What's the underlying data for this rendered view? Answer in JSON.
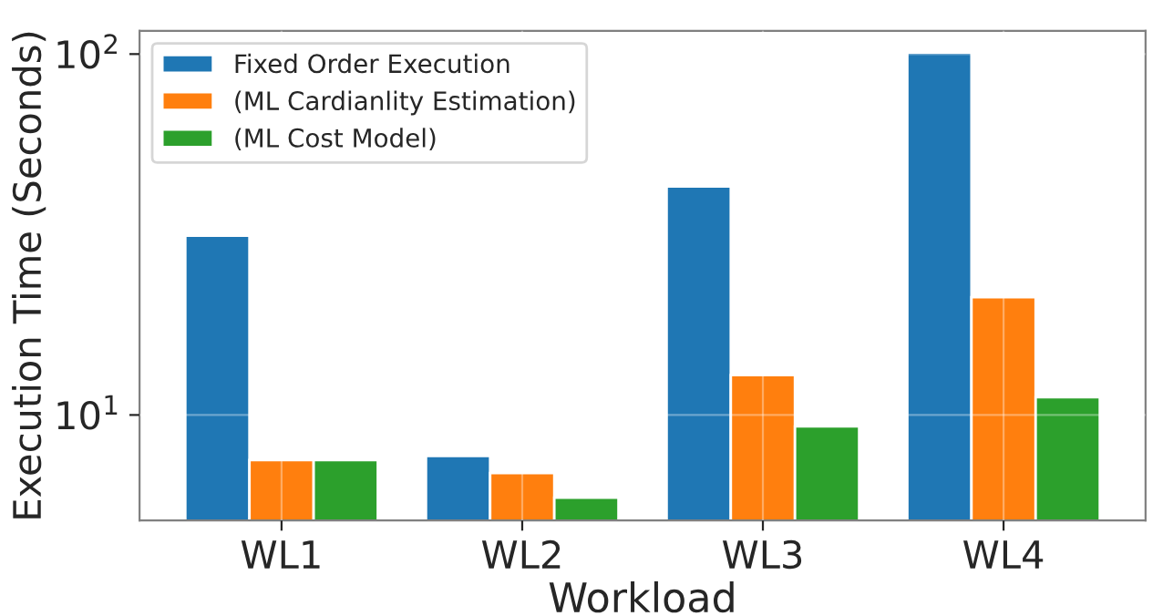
{
  "chart_data": {
    "type": "bar",
    "xlabel": "Workload",
    "ylabel": "Execution Time (Seconds)",
    "categories": [
      "WL1",
      "WL2",
      "WL3",
      "WL4"
    ],
    "series": [
      {
        "name": "Fixed Order Execution",
        "color": "#1f77b4",
        "values": [
          31.4,
          7.7,
          43,
          101
        ]
      },
      {
        "name": "(ML Cardianlity Estimation)",
        "color": "#ff7f0e",
        "values": [
          7.5,
          6.9,
          12.9,
          21.2
        ]
      },
      {
        "name": "(ML Cost Model)",
        "color": "#2ca02c",
        "values": [
          7.5,
          5.9,
          9.3,
          11.2
        ]
      }
    ],
    "log": "y",
    "ylim": [
      5.1,
      116
    ],
    "yticks": [
      {
        "value": 10,
        "label": "10$^{1}$"
      },
      {
        "value": 100,
        "label": "10$^{2}$"
      }
    ],
    "grid": true,
    "legend": "top left"
  }
}
